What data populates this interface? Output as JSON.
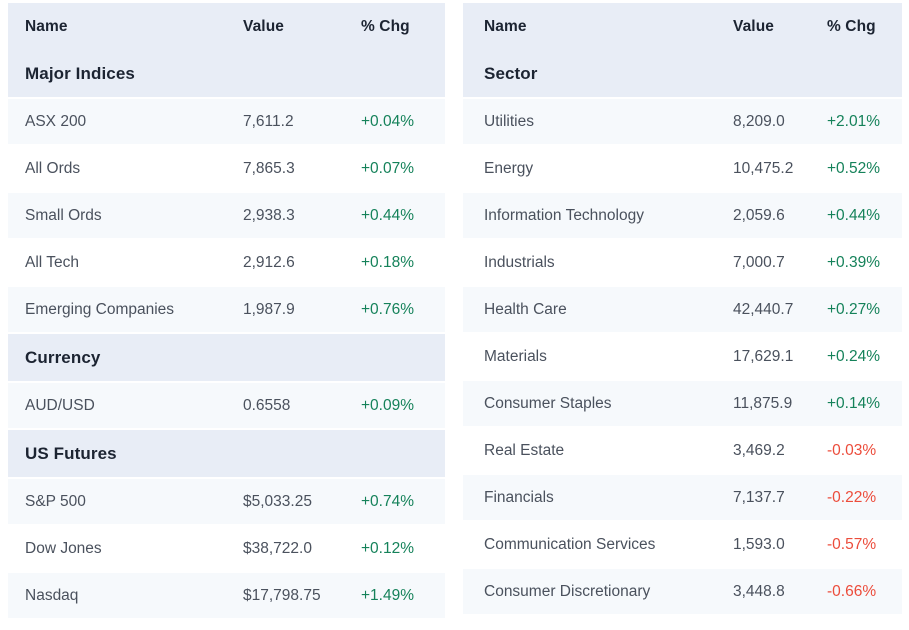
{
  "colors": {
    "header_bg": "#e8edf6",
    "alt_row_bg": "#f6f9fc",
    "row_bg": "#ffffff",
    "heading_text": "#1c2432",
    "body_text": "#4a515d",
    "positive": "#15825a",
    "negative": "#ec4c3b"
  },
  "columns": {
    "name": "Name",
    "value": "Value",
    "chg": "% Chg"
  },
  "left_table": {
    "sections": [
      {
        "title": "Major Indices",
        "rows": [
          {
            "name": "ASX 200",
            "value": "7,611.2",
            "chg": "+0.04%",
            "dir": "up"
          },
          {
            "name": "All Ords",
            "value": "7,865.3",
            "chg": "+0.07%",
            "dir": "up"
          },
          {
            "name": "Small Ords",
            "value": "2,938.3",
            "chg": "+0.44%",
            "dir": "up"
          },
          {
            "name": "All Tech",
            "value": "2,912.6",
            "chg": "+0.18%",
            "dir": "up"
          },
          {
            "name": "Emerging Companies",
            "value": "1,987.9",
            "chg": "+0.76%",
            "dir": "up"
          }
        ]
      },
      {
        "title": "Currency",
        "rows": [
          {
            "name": "AUD/USD",
            "value": "0.6558",
            "chg": "+0.09%",
            "dir": "up"
          }
        ]
      },
      {
        "title": "US Futures",
        "rows": [
          {
            "name": "S&P 500",
            "value": "$5,033.25",
            "chg": "+0.74%",
            "dir": "up"
          },
          {
            "name": "Dow Jones",
            "value": "$38,722.0",
            "chg": "+0.12%",
            "dir": "up"
          },
          {
            "name": "Nasdaq",
            "value": "$17,798.75",
            "chg": "+1.49%",
            "dir": "up"
          }
        ]
      }
    ]
  },
  "right_table": {
    "sections": [
      {
        "title": "Sector",
        "rows": [
          {
            "name": "Utilities",
            "value": "8,209.0",
            "chg": "+2.01%",
            "dir": "up"
          },
          {
            "name": "Energy",
            "value": "10,475.2",
            "chg": "+0.52%",
            "dir": "up"
          },
          {
            "name": "Information Technology",
            "value": "2,059.6",
            "chg": "+0.44%",
            "dir": "up"
          },
          {
            "name": "Industrials",
            "value": "7,000.7",
            "chg": "+0.39%",
            "dir": "up"
          },
          {
            "name": "Health Care",
            "value": "42,440.7",
            "chg": "+0.27%",
            "dir": "up"
          },
          {
            "name": "Materials",
            "value": "17,629.1",
            "chg": "+0.24%",
            "dir": "up"
          },
          {
            "name": "Consumer Staples",
            "value": "11,875.9",
            "chg": "+0.14%",
            "dir": "up"
          },
          {
            "name": "Real Estate",
            "value": "3,469.2",
            "chg": "-0.03%",
            "dir": "down"
          },
          {
            "name": "Financials",
            "value": "7,137.7",
            "chg": "-0.22%",
            "dir": "down"
          },
          {
            "name": "Communication Services",
            "value": "1,593.0",
            "chg": "-0.57%",
            "dir": "down"
          },
          {
            "name": "Consumer Discretionary",
            "value": "3,448.8",
            "chg": "-0.66%",
            "dir": "down"
          }
        ]
      }
    ]
  }
}
